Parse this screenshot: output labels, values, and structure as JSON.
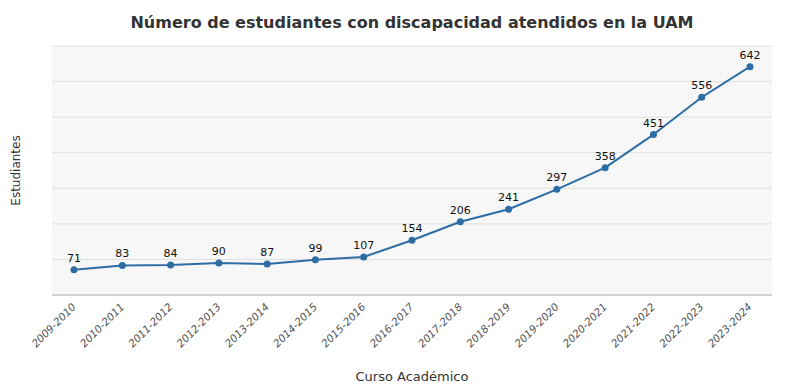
{
  "chart_data": {
    "type": "line",
    "title": "Número de estudiantes con discapacidad atendidos en la UAM",
    "xlabel": "Curso Académico",
    "ylabel": "Estudiantes",
    "categories": [
      "2009-2010",
      "2010-2011",
      "2011-2012",
      "2012-2013",
      "2013-2014",
      "2014-2015",
      "2015-2016",
      "2016-2017",
      "2017-2018",
      "2018-2019",
      "2019-2020",
      "2020-2021",
      "2021-2022",
      "2022-2023",
      "2023-2024"
    ],
    "values": [
      71,
      83,
      84,
      90,
      87,
      99,
      107,
      154,
      206,
      241,
      297,
      358,
      451,
      556,
      642
    ],
    "color": "#2e6da4",
    "marker": "circle",
    "ylim": [
      0,
      700
    ],
    "yticks": [
      0,
      100,
      200,
      300,
      400,
      500,
      600,
      700
    ],
    "grid": true,
    "data_labels": true,
    "tick_labels": "x"
  }
}
